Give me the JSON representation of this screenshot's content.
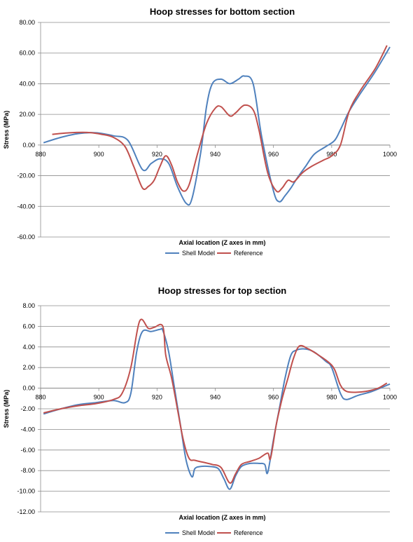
{
  "chart_data": [
    {
      "type": "line",
      "title": "Hoop stresses for bottom section",
      "xlabel": "Axial location (Z axes in mm)",
      "ylabel": "Stress (MPa)",
      "xlim": [
        880,
        1000
      ],
      "ylim": [
        -60,
        80
      ],
      "x_ticks": [
        "880",
        "900",
        "920",
        "940",
        "960",
        "980",
        "1000"
      ],
      "y_ticks": [
        "80.00",
        "60.00",
        "40.00",
        "20.00",
        "0.00",
        "-20.00",
        "-40.00",
        "-60.00"
      ],
      "grid": "horizontal",
      "legend": "bottom",
      "series": [
        {
          "name": "Shell Model",
          "color": "#4f81bd",
          "points": [
            [
              881,
              1.5
            ],
            [
              887,
              5
            ],
            [
              893,
              7.5
            ],
            [
              899,
              8
            ],
            [
              905,
              6
            ],
            [
              910,
              3
            ],
            [
              915,
              -16
            ],
            [
              918,
              -12
            ],
            [
              921,
              -9
            ],
            [
              924,
              -12
            ],
            [
              927,
              -27
            ],
            [
              930,
              -38
            ],
            [
              932,
              -35
            ],
            [
              935,
              -5
            ],
            [
              937,
              25
            ],
            [
              939,
              40
            ],
            [
              942,
              43
            ],
            [
              945,
              40
            ],
            [
              948,
              43
            ],
            [
              950,
              45
            ],
            [
              953,
              40
            ],
            [
              956,
              5
            ],
            [
              960,
              -30
            ],
            [
              962,
              -37
            ],
            [
              964,
              -33
            ],
            [
              966,
              -28
            ],
            [
              968,
              -22
            ],
            [
              971,
              -14
            ],
            [
              974,
              -6
            ],
            [
              978,
              -1
            ],
            [
              981,
              3
            ],
            [
              983,
              10
            ],
            [
              986,
              22
            ],
            [
              990,
              34
            ],
            [
              995,
              48
            ],
            [
              1000,
              64
            ]
          ]
        },
        {
          "name": "Reference",
          "color": "#c0504d",
          "points": [
            [
              884,
              7
            ],
            [
              890,
              8
            ],
            [
              896,
              8.2
            ],
            [
              901,
              7
            ],
            [
              905,
              5
            ],
            [
              909,
              -1
            ],
            [
              912,
              -14
            ],
            [
              915,
              -28
            ],
            [
              917,
              -27
            ],
            [
              919,
              -23
            ],
            [
              921,
              -14
            ],
            [
              923,
              -7
            ],
            [
              925,
              -13
            ],
            [
              927,
              -24
            ],
            [
              929,
              -30
            ],
            [
              931,
              -26
            ],
            [
              934,
              -5
            ],
            [
              937,
              14
            ],
            [
              940,
              24
            ],
            [
              942,
              25
            ],
            [
              945,
              19
            ],
            [
              947,
              21
            ],
            [
              950,
              26
            ],
            [
              953,
              23
            ],
            [
              955,
              10
            ],
            [
              958,
              -18
            ],
            [
              961,
              -30
            ],
            [
              963,
              -28
            ],
            [
              965,
              -23
            ],
            [
              967,
              -24
            ],
            [
              970,
              -18
            ],
            [
              973,
              -14
            ],
            [
              977,
              -10
            ],
            [
              980,
              -7
            ],
            [
              983,
              0
            ],
            [
              986,
              22
            ],
            [
              990,
              36
            ],
            [
              995,
              50
            ],
            [
              999,
              65
            ]
          ]
        }
      ]
    },
    {
      "type": "line",
      "title": "Hoop stresses for top section",
      "xlabel": "Axial location (Z axes in mm)",
      "ylabel": "Stress (MPa)",
      "xlim": [
        880,
        1000
      ],
      "ylim": [
        -12,
        8
      ],
      "x_ticks": [
        "880",
        "900",
        "920",
        "940",
        "960",
        "980",
        "1000"
      ],
      "y_ticks": [
        "8.00",
        "6.00",
        "4.00",
        "2.00",
        "0.00",
        "-2.00",
        "-4.00",
        "-6.00",
        "-8.00",
        "-10.00",
        "-12.00"
      ],
      "grid": "horizontal",
      "legend": "bottom",
      "series": [
        {
          "name": "Shell Model",
          "color": "#4f81bd",
          "points": [
            [
              881,
              -2.5
            ],
            [
              887,
              -2
            ],
            [
              893,
              -1.6
            ],
            [
              899,
              -1.4
            ],
            [
              905,
              -1.2
            ],
            [
              909,
              -1.4
            ],
            [
              911,
              -0.5
            ],
            [
              913,
              3.5
            ],
            [
              915,
              5.5
            ],
            [
              918,
              5.5
            ],
            [
              921,
              5.7
            ],
            [
              922,
              5.6
            ],
            [
              924,
              3.5
            ],
            [
              926,
              0
            ],
            [
              928,
              -3.5
            ],
            [
              930,
              -7
            ],
            [
              932,
              -8.6
            ],
            [
              933,
              -7.8
            ],
            [
              935,
              -7.6
            ],
            [
              938,
              -7.6
            ],
            [
              941,
              -7.8
            ],
            [
              943,
              -8.8
            ],
            [
              945,
              -9.8
            ],
            [
              947,
              -8.5
            ],
            [
              949,
              -7.6
            ],
            [
              952,
              -7.3
            ],
            [
              955,
              -7.3
            ],
            [
              957,
              -7.4
            ],
            [
              958,
              -8.2
            ],
            [
              960,
              -5
            ],
            [
              962,
              -2
            ],
            [
              964,
              1
            ],
            [
              966,
              3.2
            ],
            [
              968,
              3.7
            ],
            [
              971,
              3.8
            ],
            [
              974,
              3.5
            ],
            [
              978,
              2.6
            ],
            [
              980,
              2
            ],
            [
              983,
              -0.5
            ],
            [
              985,
              -1.1
            ],
            [
              989,
              -0.7
            ],
            [
              994,
              -0.3
            ],
            [
              1000,
              0.4
            ]
          ]
        },
        {
          "name": "Reference",
          "color": "#c0504d",
          "points": [
            [
              881,
              -2.4
            ],
            [
              887,
              -2
            ],
            [
              893,
              -1.7
            ],
            [
              899,
              -1.5
            ],
            [
              905,
              -1.1
            ],
            [
              908,
              -0.5
            ],
            [
              911,
              2
            ],
            [
              914,
              6.5
            ],
            [
              917,
              5.8
            ],
            [
              919,
              5.9
            ],
            [
              922,
              6
            ],
            [
              923,
              3.2
            ],
            [
              925,
              1
            ],
            [
              927,
              -2
            ],
            [
              929,
              -5
            ],
            [
              931,
              -6.8
            ],
            [
              933,
              -7
            ],
            [
              936,
              -7.2
            ],
            [
              939,
              -7.4
            ],
            [
              942,
              -7.7
            ],
            [
              945,
              -9.2
            ],
            [
              947,
              -8.3
            ],
            [
              949,
              -7.4
            ],
            [
              952,
              -7.1
            ],
            [
              955,
              -6.8
            ],
            [
              958,
              -6.3
            ],
            [
              959,
              -6.8
            ],
            [
              961,
              -3.5
            ],
            [
              963,
              -1
            ],
            [
              965,
              1
            ],
            [
              967,
              3
            ],
            [
              969,
              4.1
            ],
            [
              972,
              3.8
            ],
            [
              975,
              3.3
            ],
            [
              979,
              2.5
            ],
            [
              981,
              1.8
            ],
            [
              983,
              0.3
            ],
            [
              985,
              -0.3
            ],
            [
              988,
              -0.4
            ],
            [
              992,
              -0.3
            ],
            [
              996,
              0
            ],
            [
              999,
              0.5
            ]
          ]
        }
      ]
    }
  ]
}
